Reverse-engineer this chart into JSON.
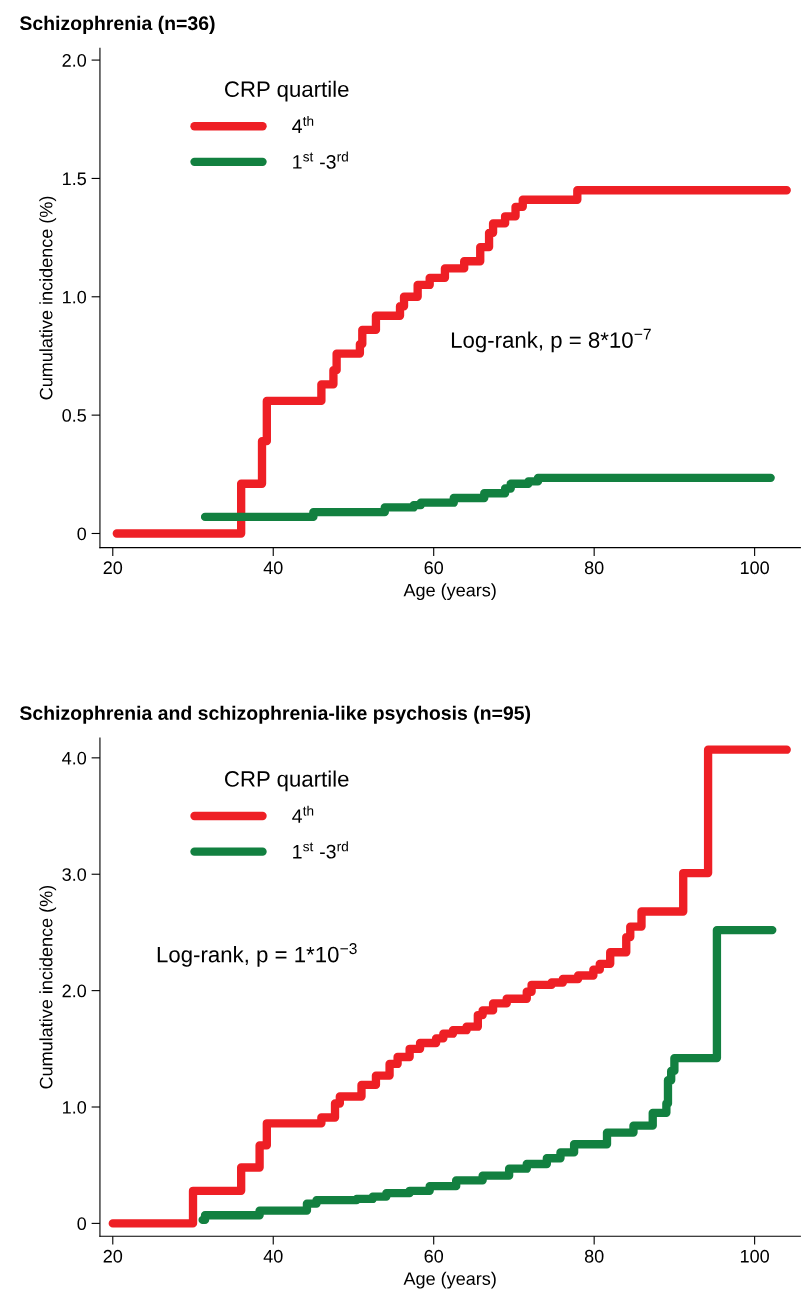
{
  "chart_data": [
    {
      "type": "step",
      "title": "Schizophrenia (n=36)",
      "xlabel": "Age (years)",
      "ylabel": "Cumulative incidence (%)",
      "legend_title": "CRP quartile",
      "legend": "top left",
      "xlim": [
        18.4,
        105.7
      ],
      "ylim": [
        -0.06,
        2.05
      ],
      "xticks": [
        20,
        40,
        60,
        80,
        100
      ],
      "yticks": [
        0,
        {
          "value": 0.5,
          "label": "0.5"
        },
        {
          "value": 1,
          "label": "1.0"
        },
        {
          "value": 1.5,
          "label": "1.5"
        },
        {
          "value": 2,
          "label": "2.0"
        }
      ],
      "annotations": [
        "Log-rank, p = 8*10$^{−7}$"
      ],
      "series": [
        {
          "name": "4$^{th}$",
          "color": "#ee1f25",
          "x": [
            20.5,
            36.0,
            38.6,
            39.2,
            46.0,
            47.5,
            47.9,
            50.8,
            51.1,
            52.8,
            55.8,
            56.3,
            58.0,
            59.5,
            61.4,
            63.8,
            65.8,
            66.9,
            67.4,
            68.9,
            70.2,
            71.1,
            77.9,
            104.0
          ],
          "values": [
            0,
            0.21,
            0.39,
            0.56,
            0.63,
            0.69,
            0.76,
            0.8,
            0.86,
            0.92,
            0.96,
            1.0,
            1.05,
            1.08,
            1.12,
            1.15,
            1.21,
            1.27,
            1.31,
            1.34,
            1.38,
            1.41,
            1.45,
            1.45
          ]
        },
        {
          "name": "1$^{st}$ -3$^{rd}$",
          "color": "#128040",
          "x": [
            31.5,
            45.0,
            53.9,
            57.5,
            58.4,
            62.5,
            66.3,
            68.9,
            69.6,
            71.8,
            73.0,
            102.0
          ],
          "values": [
            0.07,
            0.09,
            0.11,
            0.12,
            0.13,
            0.15,
            0.17,
            0.19,
            0.21,
            0.22,
            0.235,
            0.235
          ]
        }
      ]
    },
    {
      "type": "step",
      "title": "Schizophrenia and schizophrenia-like psychosis (n=95)",
      "xlabel": "Age (years)",
      "ylabel": "Cumulative incidence (%)",
      "legend_title": "CRP quartile",
      "legend": "top left",
      "xlim": [
        18.4,
        105.7
      ],
      "ylim": [
        -0.11,
        4.17
      ],
      "xticks": [
        20,
        40,
        60,
        80,
        100
      ],
      "yticks": [
        0,
        {
          "value": 1,
          "label": "1.0"
        },
        {
          "value": 2,
          "label": "2.0"
        },
        {
          "value": 3,
          "label": "3.0"
        },
        {
          "value": 4,
          "label": "4.0"
        }
      ],
      "annotations": [
        "Log-rank, p = 1*10$^{−3}$"
      ],
      "series": [
        {
          "name": "4$^{th}$",
          "color": "#ee1f25",
          "x": [
            20.0,
            30.0,
            36.0,
            38.3,
            39.2,
            46.0,
            47.7,
            48.3,
            51.0,
            52.8,
            54.5,
            55.5,
            57.0,
            58.3,
            60.3,
            61.2,
            62.4,
            64.1,
            65.5,
            66.1,
            67.4,
            69.1,
            71.6,
            72.2,
            74.7,
            76.1,
            78.0,
            79.9,
            80.7,
            82.0,
            84.0,
            84.5,
            85.9,
            91.1,
            94.2,
            104.0
          ],
          "values": [
            0,
            0.28,
            0.48,
            0.67,
            0.86,
            0.91,
            1.03,
            1.09,
            1.19,
            1.27,
            1.37,
            1.43,
            1.5,
            1.55,
            1.59,
            1.63,
            1.66,
            1.69,
            1.79,
            1.83,
            1.89,
            1.93,
            1.99,
            2.05,
            2.07,
            2.1,
            2.13,
            2.18,
            2.23,
            2.33,
            2.46,
            2.55,
            2.68,
            3.01,
            4.07,
            4.07
          ]
        },
        {
          "name": "1$^{st}$ -3$^{rd}$",
          "color": "#128040",
          "x": [
            31.2,
            31.5,
            38.3,
            44.2,
            45.4,
            50.4,
            52.4,
            54.1,
            57.0,
            59.5,
            62.8,
            66.1,
            69.4,
            71.6,
            74.1,
            75.8,
            77.5,
            81.6,
            84.9,
            87.3,
            89.0,
            89.2,
            89.6,
            90.0,
            95.3,
            102.2
          ],
          "values": [
            0.03,
            0.07,
            0.11,
            0.17,
            0.2,
            0.21,
            0.23,
            0.26,
            0.28,
            0.32,
            0.37,
            0.41,
            0.47,
            0.51,
            0.56,
            0.61,
            0.68,
            0.78,
            0.84,
            0.95,
            1.03,
            1.23,
            1.31,
            1.42,
            2.52,
            2.52
          ]
        }
      ]
    }
  ]
}
